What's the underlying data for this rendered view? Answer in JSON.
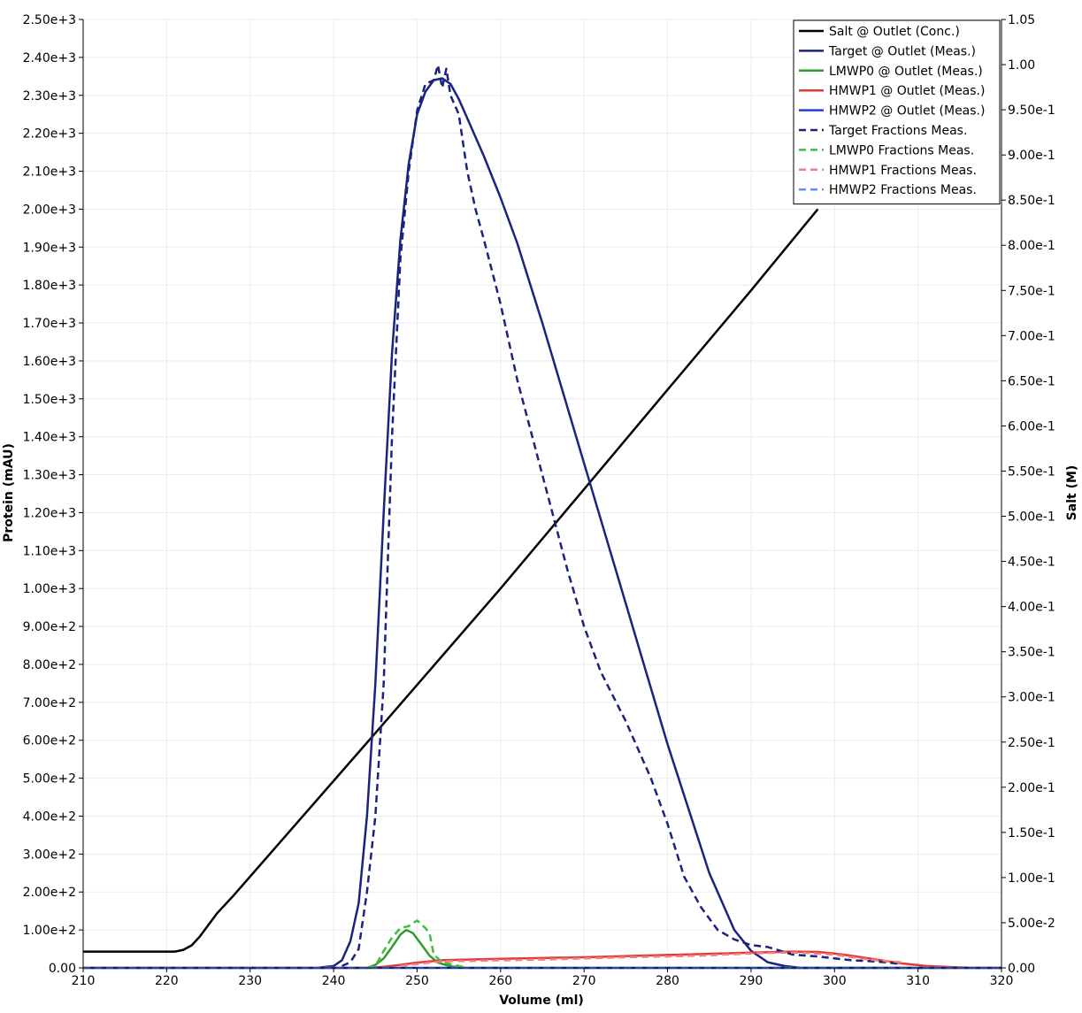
{
  "chart_data": {
    "type": "line",
    "xlabel": "Volume (ml)",
    "ylabel": "Protein (mAU)",
    "y2label": "Salt (M)",
    "xlim": [
      210,
      320
    ],
    "ylim": [
      0,
      2500
    ],
    "y2lim": [
      0,
      1.05
    ],
    "grid": true,
    "legend_position": "top-right",
    "x_ticks": [
      210,
      220,
      230,
      240,
      250,
      260,
      270,
      280,
      290,
      300,
      310,
      320
    ],
    "x_tick_labels": [
      "210",
      "220",
      "230",
      "240",
      "250",
      "260",
      "270",
      "280",
      "290",
      "300",
      "310",
      "320"
    ],
    "y_ticks": [
      0,
      100,
      200,
      300,
      400,
      500,
      600,
      700,
      800,
      900,
      1000,
      1100,
      1200,
      1300,
      1400,
      1500,
      1600,
      1700,
      1800,
      1900,
      2000,
      2100,
      2200,
      2300,
      2400,
      2500
    ],
    "y_tick_labels": [
      "0.00",
      "1.00e+2",
      "2.00e+2",
      "3.00e+2",
      "4.00e+2",
      "5.00e+2",
      "6.00e+2",
      "7.00e+2",
      "8.00e+2",
      "9.00e+2",
      "1.00e+3",
      "1.10e+3",
      "1.20e+3",
      "1.30e+3",
      "1.40e+3",
      "1.50e+3",
      "1.60e+3",
      "1.70e+3",
      "1.80e+3",
      "1.90e+3",
      "2.00e+3",
      "2.10e+3",
      "2.20e+3",
      "2.30e+3",
      "2.40e+3",
      "2.50e+3"
    ],
    "y2_ticks": [
      0,
      0.05,
      0.1,
      0.15,
      0.2,
      0.25,
      0.3,
      0.35,
      0.4,
      0.45,
      0.5,
      0.55,
      0.6,
      0.65,
      0.7,
      0.75,
      0.8,
      0.85,
      0.9,
      0.95,
      1.0,
      1.05
    ],
    "y2_tick_labels": [
      "0.00",
      "5.00e-2",
      "1.00e-1",
      "1.50e-1",
      "2.00e-1",
      "2.50e-1",
      "3.00e-1",
      "3.50e-1",
      "4.00e-1",
      "4.50e-1",
      "5.00e-1",
      "5.50e-1",
      "6.00e-1",
      "6.50e-1",
      "7.00e-1",
      "7.50e-1",
      "8.00e-1",
      "8.50e-1",
      "9.00e-1",
      "9.50e-1",
      "1.00",
      "1.05"
    ],
    "series": [
      {
        "name": "Salt @ Outlet (Conc.)",
        "axis": "right",
        "color": "#000000",
        "dash": false,
        "x": [
          210,
          221,
          222,
          223,
          224,
          226,
          228,
          245,
          260,
          270,
          280,
          290,
          298
        ],
        "y": [
          0.018,
          0.018,
          0.02,
          0.025,
          0.035,
          0.06,
          0.08,
          0.26,
          0.42,
          0.53,
          0.64,
          0.75,
          0.84
        ]
      },
      {
        "name": "Target @ Outlet (Meas.)",
        "axis": "left",
        "color": "#1a237e",
        "dash": false,
        "x": [
          210,
          238,
          240,
          241,
          242,
          243,
          244,
          245,
          246,
          247,
          248,
          249,
          250,
          251,
          252,
          253,
          254,
          255,
          256,
          258,
          260,
          262,
          265,
          270,
          275,
          280,
          285,
          288,
          290,
          292,
          294,
          296,
          320
        ],
        "y": [
          0,
          0,
          5,
          20,
          70,
          170,
          400,
          750,
          1200,
          1620,
          1920,
          2120,
          2250,
          2310,
          2340,
          2345,
          2330,
          2290,
          2240,
          2140,
          2030,
          1910,
          1700,
          1330,
          960,
          590,
          250,
          100,
          45,
          15,
          5,
          0,
          0
        ]
      },
      {
        "name": "LMWP0 @ Outlet (Meas.)",
        "axis": "left",
        "color": "#2e9b2e",
        "dash": false,
        "x": [
          210,
          244,
          245,
          246,
          247,
          248,
          248.7,
          249.5,
          250.5,
          251.5,
          252.5,
          254,
          256,
          320
        ],
        "y": [
          0,
          0,
          8,
          25,
          55,
          88,
          100,
          92,
          62,
          32,
          14,
          4,
          0,
          0
        ]
      },
      {
        "name": "HMWP1 @ Outlet (Meas.)",
        "axis": "left",
        "color": "#e53935",
        "dash": false,
        "x": [
          210,
          244,
          246,
          248,
          250,
          253,
          256,
          260,
          270,
          280,
          290,
          295,
          298,
          300,
          302,
          305,
          308,
          311,
          314,
          317,
          320
        ],
        "y": [
          0,
          0,
          3,
          8,
          14,
          20,
          22,
          24,
          28,
          34,
          40,
          43,
          42,
          38,
          32,
          22,
          12,
          5,
          2,
          0,
          0
        ]
      },
      {
        "name": "HMWP2 @ Outlet (Meas.)",
        "axis": "left",
        "color": "#1e3fd6",
        "dash": false,
        "x": [
          210,
          320
        ],
        "y": [
          0,
          0
        ]
      },
      {
        "name": "Target Fractions Meas.",
        "axis": "left",
        "color": "#1a237e",
        "dash": true,
        "x": [
          241,
          242,
          243,
          244,
          245,
          246,
          247,
          248,
          249,
          250,
          251,
          252,
          252.5,
          253,
          253.5,
          254,
          255,
          256,
          257,
          258,
          260,
          262,
          265,
          268,
          270,
          272,
          275,
          278,
          280,
          282,
          284,
          286,
          288,
          290,
          292,
          295,
          298,
          300,
          302,
          304,
          306,
          308
        ],
        "y": [
          5,
          15,
          50,
          200,
          400,
          750,
          1400,
          1870,
          2100,
          2260,
          2330,
          2340,
          2380,
          2320,
          2370,
          2300,
          2250,
          2100,
          2000,
          1920,
          1750,
          1550,
          1300,
          1050,
          900,
          780,
          650,
          500,
          380,
          240,
          160,
          100,
          75,
          60,
          55,
          35,
          30,
          25,
          20,
          18,
          15,
          10
        ]
      },
      {
        "name": "LMWP0 Fractions Meas.",
        "axis": "left",
        "color": "#3fbf3f",
        "dash": true,
        "x": [
          244,
          245,
          246,
          247,
          248,
          249,
          250,
          251,
          251.5,
          252,
          253,
          254,
          255,
          256
        ],
        "y": [
          0,
          5,
          45,
          80,
          105,
          110,
          125,
          105,
          90,
          35,
          15,
          10,
          5,
          0
        ]
      },
      {
        "name": "HMWP1 Fractions Meas.",
        "axis": "left",
        "color": "#f08080",
        "dash": true,
        "x": [
          248,
          250,
          252,
          254,
          256,
          260,
          265,
          270,
          275,
          280,
          285,
          290,
          293,
          296,
          300,
          303,
          305,
          308
        ],
        "y": [
          5,
          10,
          15,
          18,
          18,
          20,
          22,
          25,
          28,
          30,
          33,
          38,
          40,
          40,
          35,
          25,
          20,
          15
        ]
      },
      {
        "name": "HMWP2 Fractions Meas.",
        "axis": "left",
        "color": "#6b8cff",
        "dash": true,
        "x": [
          210,
          320
        ],
        "y": [
          0,
          0
        ]
      }
    ]
  }
}
